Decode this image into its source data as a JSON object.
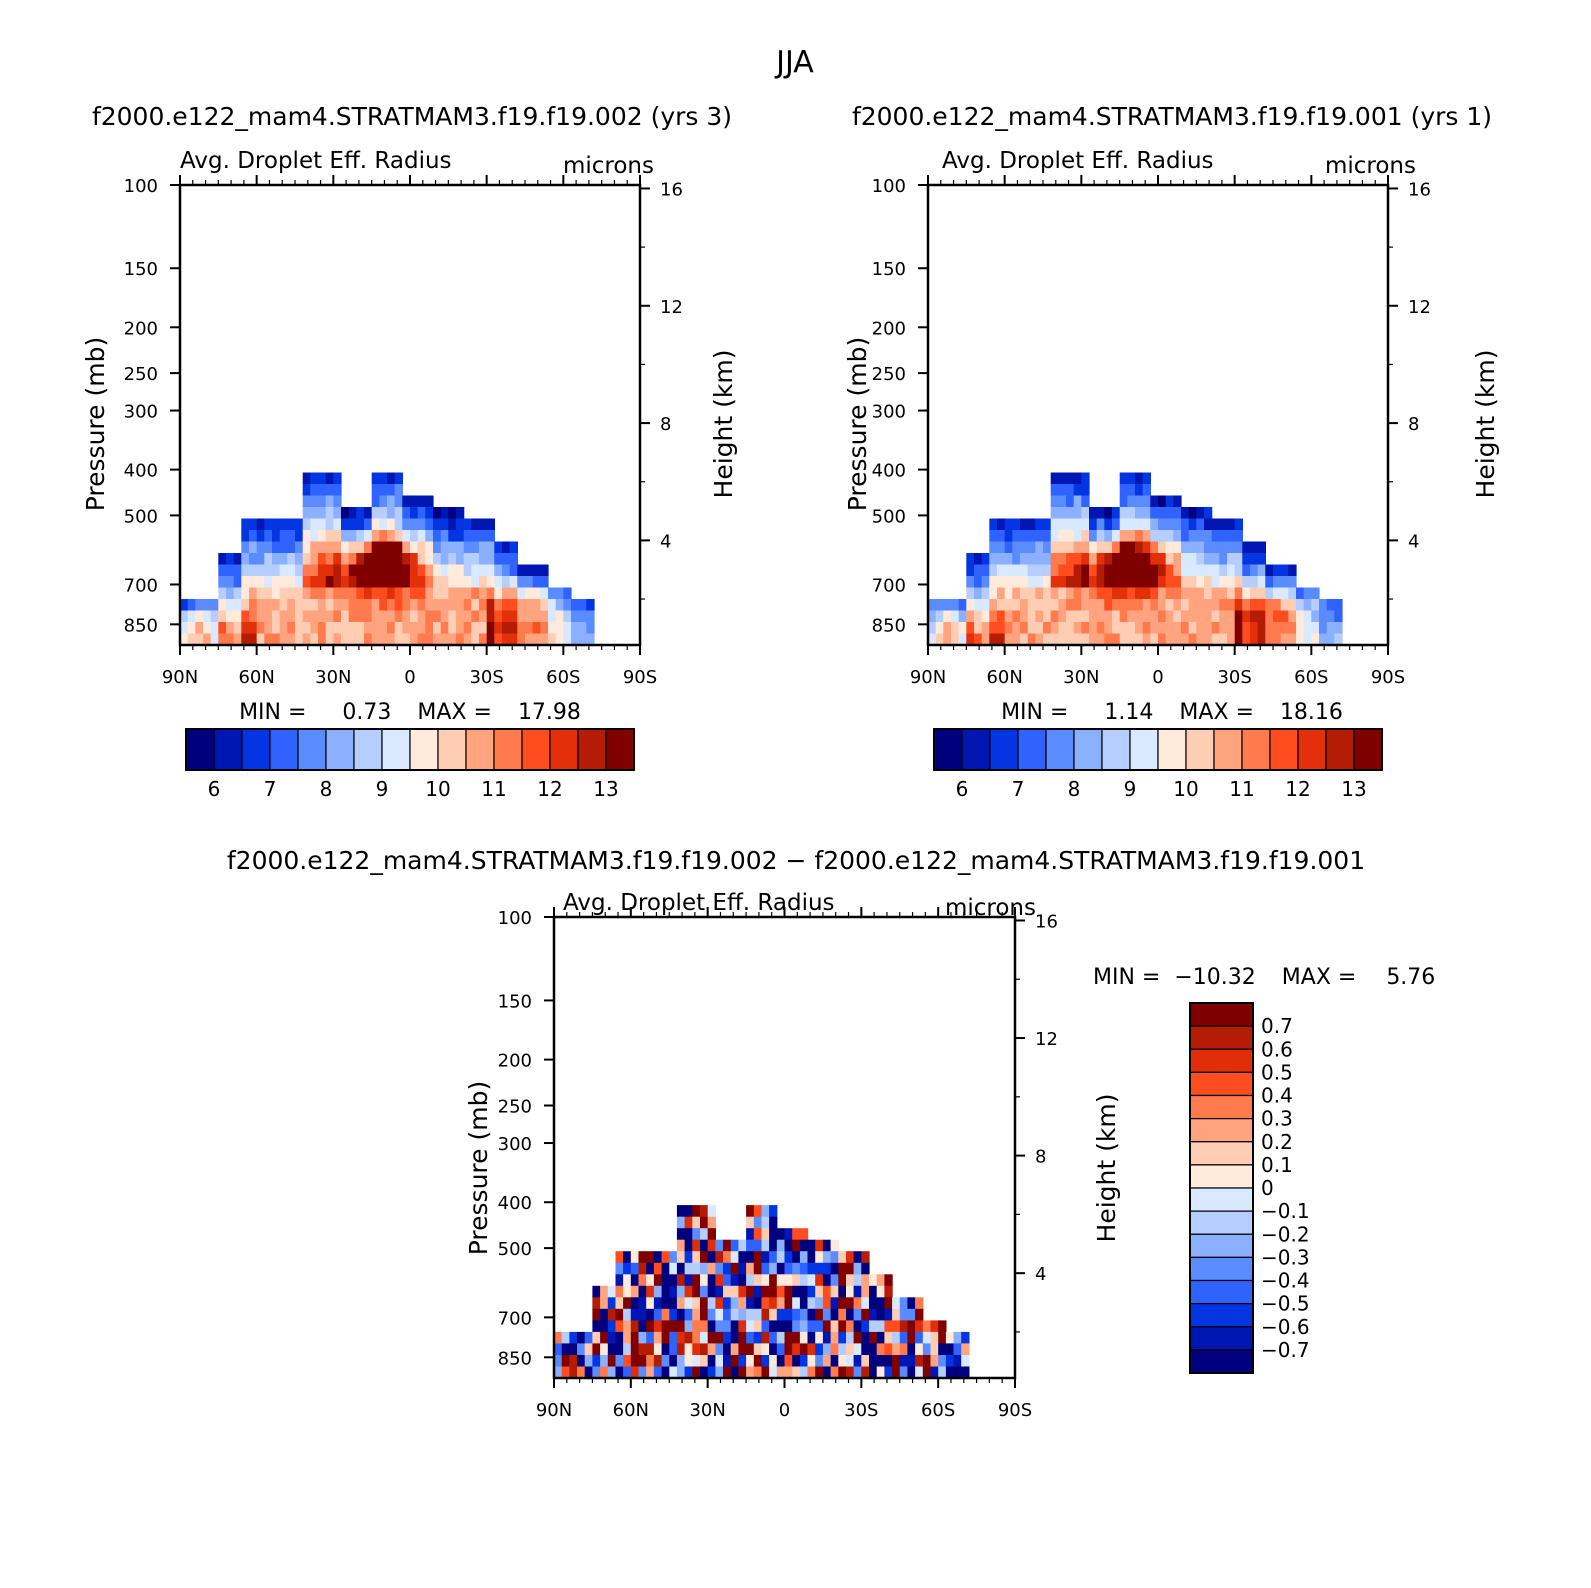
{
  "figure": {
    "title": "JJA",
    "top_row_titles": [
      "f2000.e122_mam4.STRATMAM3.f19.f19.002  (yrs  3)",
      "f2000.e122_mam4.STRATMAM3.f19.f19.001  (yrs  1)"
    ],
    "diff_title": "f2000.e122_mam4.STRATMAM3.f19.f19.002  −  f2000.e122_mam4.STRATMAM3.f19.f19.001"
  },
  "chart_data": [
    {
      "type": "heatmap",
      "panel": "case1",
      "left_string": "Avg. Droplet Eff. Radius",
      "right_string": "microns",
      "xlabel": "",
      "ylabel": "Pressure (mb)",
      "y2label": "Height (km)",
      "x_ticks": [
        "90N",
        "60N",
        "30N",
        "0",
        "30S",
        "60S",
        "90S"
      ],
      "x_range": [
        90,
        -90
      ],
      "y_scale": "log",
      "y_range_mb": [
        100,
        1000
      ],
      "y_ticks_mb": [
        100,
        150,
        200,
        250,
        300,
        400,
        500,
        700,
        850
      ],
      "y2_ticks_km": [
        4,
        8,
        12,
        16
      ],
      "min_label": "MIN =",
      "min_value": "0.73",
      "max_label": "MAX =",
      "max_value": "17.98",
      "colorbar": {
        "orientation": "horizontal",
        "levels": [
          5.5,
          6,
          6.5,
          7,
          7.5,
          8,
          8.5,
          9,
          9.5,
          10,
          10.5,
          11,
          11.5,
          12,
          12.5,
          13
        ],
        "labels": [
          "6",
          "7",
          "8",
          "9",
          "10",
          "11",
          "12",
          "13"
        ]
      }
    },
    {
      "type": "heatmap",
      "panel": "case2",
      "left_string": "Avg. Droplet Eff. Radius",
      "right_string": "microns",
      "xlabel": "",
      "ylabel": "Pressure (mb)",
      "y2label": "Height (km)",
      "x_ticks": [
        "90N",
        "60N",
        "30N",
        "0",
        "30S",
        "60S",
        "90S"
      ],
      "x_range": [
        90,
        -90
      ],
      "y_scale": "log",
      "y_range_mb": [
        100,
        1000
      ],
      "y_ticks_mb": [
        100,
        150,
        200,
        250,
        300,
        400,
        500,
        700,
        850
      ],
      "y2_ticks_km": [
        4,
        8,
        12,
        16
      ],
      "min_label": "MIN =",
      "min_value": "1.14",
      "max_label": "MAX =",
      "max_value": "18.16",
      "colorbar": {
        "orientation": "horizontal",
        "levels": [
          5.5,
          6,
          6.5,
          7,
          7.5,
          8,
          8.5,
          9,
          9.5,
          10,
          10.5,
          11,
          11.5,
          12,
          12.5,
          13
        ],
        "labels": [
          "6",
          "7",
          "8",
          "9",
          "10",
          "11",
          "12",
          "13"
        ]
      }
    },
    {
      "type": "heatmap",
      "panel": "difference",
      "left_string": "Avg. Droplet Eff. Radius",
      "right_string": "microns",
      "xlabel": "",
      "ylabel": "Pressure (mb)",
      "y2label": "Height (km)",
      "x_ticks": [
        "90N",
        "60N",
        "30N",
        "0",
        "30S",
        "60S",
        "90S"
      ],
      "x_range": [
        90,
        -90
      ],
      "y_scale": "log",
      "y_range_mb": [
        100,
        1000
      ],
      "y_ticks_mb": [
        100,
        150,
        200,
        250,
        300,
        400,
        500,
        700,
        850
      ],
      "y2_ticks_km": [
        4,
        8,
        12,
        16
      ],
      "min_label": "MIN =",
      "min_value": "−10.32",
      "max_label": "MAX =",
      "max_value": "5.76",
      "colorbar": {
        "orientation": "vertical",
        "levels": [
          -0.7,
          -0.6,
          -0.5,
          -0.4,
          -0.3,
          -0.2,
          -0.1,
          0,
          0.1,
          0.2,
          0.3,
          0.4,
          0.5,
          0.6,
          0.7
        ],
        "labels": [
          "0.7",
          "0.6",
          "0.5",
          "0.4",
          "0.3",
          "0.2",
          "0.1",
          "0",
          "−0.1",
          "−0.2",
          "−0.3",
          "−0.4",
          "−0.5",
          "−0.6",
          "−0.7"
        ]
      }
    }
  ],
  "colors": {
    "radius_palette": [
      "#00007f",
      "#0016b3",
      "#0435e2",
      "#2f62ff",
      "#5b8cff",
      "#8ab0ff",
      "#b6cdff",
      "#d9e9ff",
      "#ffeadb",
      "#ffcdb4",
      "#ffa47f",
      "#ff7a4d",
      "#ff4d1f",
      "#e42f0b",
      "#b51c04",
      "#800000"
    ],
    "diff_palette_top_to_bottom": [
      "#800000",
      "#b51c04",
      "#e02e0a",
      "#ff4d1f",
      "#ff7a4d",
      "#ffa47f",
      "#ffcdb4",
      "#ffeadb",
      "#d9e9ff",
      "#b6cdff",
      "#8ab0ff",
      "#5b8cff",
      "#2f62ff",
      "#0435e2",
      "#0016b3",
      "#00007f"
    ]
  }
}
